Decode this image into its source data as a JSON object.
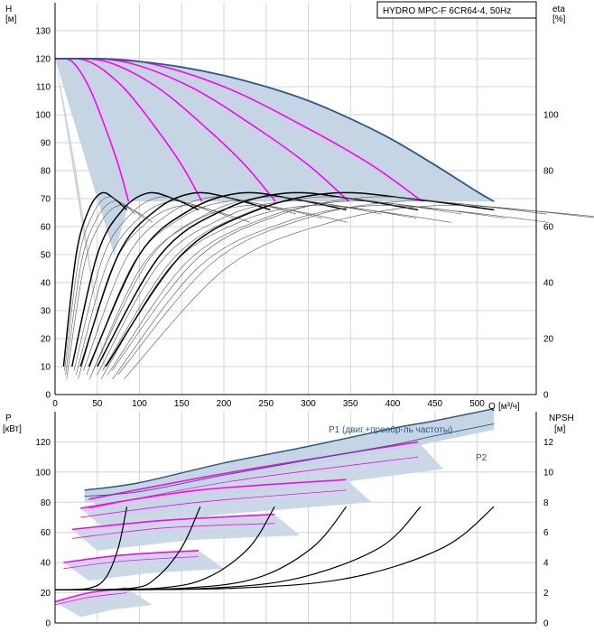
{
  "chart_data": [
    {
      "type": "line",
      "title": "HYDRO MPC-F 6CR64-4, 50Hz",
      "ylabel": "H",
      "yunit": "[м]",
      "y2label": "eta",
      "y2unit": "[%]",
      "xlabel": "Q",
      "xunit": "[м³/ч]",
      "xlim": [
        0,
        570
      ],
      "ylim": [
        0,
        140
      ],
      "y2lim": [
        0,
        140
      ],
      "xticks": [
        0,
        50,
        100,
        150,
        200,
        250,
        300,
        350,
        400,
        450,
        500
      ],
      "yticks": [
        0,
        10,
        20,
        30,
        40,
        50,
        60,
        70,
        80,
        90,
        100,
        110,
        120,
        130
      ],
      "y2ticks": [
        0,
        20,
        40,
        60,
        80,
        100
      ],
      "grid": true,
      "colors": {
        "envelope": "#c5d5e3",
        "max_curve": "#2b5b88",
        "speed_curves": "#ff00ff",
        "eta_curves": "#000000"
      },
      "head_envelope": {
        "upper": [
          [
            0,
            120
          ],
          [
            50,
            120
          ],
          [
            100,
            119
          ],
          [
            150,
            117
          ],
          [
            200,
            114
          ],
          [
            250,
            110
          ],
          [
            300,
            105
          ],
          [
            350,
            98.5
          ],
          [
            400,
            91
          ],
          [
            450,
            82
          ],
          [
            500,
            72.5
          ],
          [
            520,
            69
          ]
        ],
        "lower_left": [
          [
            0,
            120
          ],
          [
            10,
            105
          ],
          [
            25,
            80
          ],
          [
            35,
            60
          ],
          [
            45,
            40
          ],
          [
            52,
            22
          ],
          [
            58,
            10
          ],
          [
            62,
            5
          ]
        ],
        "min_head": 69,
        "min_head_start": 88
      },
      "max_curve": [
        [
          0,
          120
        ],
        [
          50,
          120
        ],
        [
          100,
          119
        ],
        [
          150,
          117
        ],
        [
          200,
          114
        ],
        [
          250,
          110
        ],
        [
          300,
          105
        ],
        [
          350,
          98.5
        ],
        [
          400,
          91
        ],
        [
          450,
          82
        ],
        [
          500,
          72.5
        ],
        [
          520,
          69
        ]
      ],
      "speed_curves": [
        {
          "pumps": 1,
          "points": [
            [
              0,
              120
            ],
            [
              20,
              119
            ],
            [
              40,
              110
            ],
            [
              60,
              95
            ],
            [
              75,
              82
            ],
            [
              87,
              69
            ]
          ]
        },
        {
          "pumps": 2,
          "points": [
            [
              0,
              120
            ],
            [
              40,
              119
            ],
            [
              80,
              110
            ],
            [
              120,
              95
            ],
            [
              150,
              82
            ],
            [
              174,
              69
            ]
          ]
        },
        {
          "pumps": 3,
          "points": [
            [
              0,
              120
            ],
            [
              60,
              119
            ],
            [
              120,
              110
            ],
            [
              180,
              95
            ],
            [
              225,
              82
            ],
            [
              261,
              69
            ]
          ]
        },
        {
          "pumps": 4,
          "points": [
            [
              0,
              120
            ],
            [
              80,
              119
            ],
            [
              160,
              110
            ],
            [
              240,
              95
            ],
            [
              300,
              82
            ],
            [
              348,
              69
            ]
          ]
        },
        {
          "pumps": 5,
          "points": [
            [
              0,
              120
            ],
            [
              100,
              119
            ],
            [
              200,
              110
            ],
            [
              300,
              95
            ],
            [
              375,
              82
            ],
            [
              435,
              69
            ]
          ]
        }
      ],
      "eta_curves": [
        {
          "pumps": 1,
          "points": [
            [
              10,
              10
            ],
            [
              25,
              50
            ],
            [
              40,
              66
            ],
            [
              55,
              72
            ],
            [
              70,
              70
            ],
            [
              85,
              66
            ]
          ]
        },
        {
          "pumps": 2,
          "points": [
            [
              20,
              10
            ],
            [
              50,
              50
            ],
            [
              80,
              66
            ],
            [
              110,
              72
            ],
            [
              140,
              70
            ],
            [
              170,
              66
            ]
          ]
        },
        {
          "pumps": 3,
          "points": [
            [
              30,
              10
            ],
            [
              75,
              50
            ],
            [
              120,
              66
            ],
            [
              165,
              72
            ],
            [
              210,
              70
            ],
            [
              255,
              66
            ]
          ]
        },
        {
          "pumps": 4,
          "points": [
            [
              40,
              10
            ],
            [
              100,
              50
            ],
            [
              160,
              66
            ],
            [
              220,
              72
            ],
            [
              280,
              70
            ],
            [
              345,
              66
            ]
          ]
        },
        {
          "pumps": 5,
          "points": [
            [
              50,
              10
            ],
            [
              125,
              50
            ],
            [
              200,
              66
            ],
            [
              275,
              72
            ],
            [
              350,
              70
            ],
            [
              430,
              66
            ]
          ]
        },
        {
          "pumps": 6,
          "points": [
            [
              60,
              10
            ],
            [
              150,
              50
            ],
            [
              240,
              66
            ],
            [
              330,
              72
            ],
            [
              420,
              70
            ],
            [
              520,
              66
            ]
          ]
        }
      ]
    },
    {
      "type": "line",
      "ylabel": "P",
      "yunit": "[кВт]",
      "y2label": "NPSH",
      "y2unit": "[м]",
      "xlim": [
        0,
        570
      ],
      "ylim": [
        0,
        140
      ],
      "y2lim": [
        0,
        14
      ],
      "yticks": [
        0,
        20,
        40,
        60,
        80,
        100,
        120
      ],
      "y2ticks": [
        0,
        2,
        4,
        6,
        8,
        10,
        12
      ],
      "grid": true,
      "legend": [
        "P1 (двиг.+преобр-ль частоты)",
        "P2"
      ],
      "p1_max": [
        [
          35,
          88
        ],
        [
          100,
          93
        ],
        [
          200,
          106
        ],
        [
          300,
          117
        ],
        [
          400,
          129
        ],
        [
          450,
          134
        ],
        [
          520,
          142
        ]
      ],
      "p2_max": [
        [
          35,
          84
        ],
        [
          100,
          87
        ],
        [
          200,
          98
        ],
        [
          300,
          108
        ],
        [
          400,
          118
        ],
        [
          450,
          124
        ],
        [
          520,
          132
        ]
      ],
      "power_bands": [
        {
          "pumps": 1,
          "p1": [
            [
              0,
              14
            ],
            [
              40,
              20
            ],
            [
              85,
              23
            ]
          ],
          "p2": [
            [
              0,
              12
            ],
            [
              40,
              17
            ],
            [
              85,
              20
            ]
          ]
        },
        {
          "pumps": 2,
          "p1": [
            [
              10,
              40
            ],
            [
              80,
              45
            ],
            [
              170,
              48
            ]
          ],
          "p2": [
            [
              10,
              36
            ],
            [
              80,
              41
            ],
            [
              170,
              44
            ]
          ]
        },
        {
          "pumps": 3,
          "p1": [
            [
              20,
              62
            ],
            [
              130,
              68
            ],
            [
              260,
              72
            ]
          ],
          "p2": [
            [
              20,
              56
            ],
            [
              130,
              63
            ],
            [
              260,
              66
            ]
          ]
        },
        {
          "pumps": 4,
          "p1": [
            [
              30,
              76
            ],
            [
              170,
              88
            ],
            [
              345,
              95
            ]
          ],
          "p2": [
            [
              30,
              70
            ],
            [
              170,
              80
            ],
            [
              345,
              88
            ]
          ]
        },
        {
          "pumps": 5,
          "p1": [
            [
              40,
              82
            ],
            [
              210,
              100
            ],
            [
              430,
              120
            ]
          ],
          "p2": [
            [
              40,
              76
            ],
            [
              210,
              94
            ],
            [
              430,
              110
            ]
          ]
        }
      ],
      "npsh_curves": [
        {
          "pumps": 1,
          "points": [
            [
              0,
              2.2
            ],
            [
              40,
              2.3
            ],
            [
              60,
              3
            ],
            [
              75,
              5
            ],
            [
              85,
              7.7
            ]
          ]
        },
        {
          "pumps": 2,
          "points": [
            [
              0,
              2.2
            ],
            [
              90,
              2.3
            ],
            [
              120,
              3
            ],
            [
              150,
              5
            ],
            [
              172,
              7.7
            ]
          ]
        },
        {
          "pumps": 3,
          "points": [
            [
              0,
              2.2
            ],
            [
              120,
              2.3
            ],
            [
              180,
              3
            ],
            [
              230,
              5
            ],
            [
              260,
              7.7
            ]
          ]
        },
        {
          "pumps": 4,
          "points": [
            [
              0,
              2.2
            ],
            [
              150,
              2.3
            ],
            [
              240,
              3
            ],
            [
              305,
              5
            ],
            [
              345,
              7.7
            ]
          ]
        },
        {
          "pumps": 5,
          "points": [
            [
              0,
              2.2
            ],
            [
              180,
              2.3
            ],
            [
              290,
              3
            ],
            [
              385,
              5
            ],
            [
              433,
              7.7
            ]
          ]
        },
        {
          "pumps": 6,
          "points": [
            [
              0,
              2.2
            ],
            [
              210,
              2.3
            ],
            [
              350,
              3
            ],
            [
              460,
              5
            ],
            [
              520,
              7.7
            ]
          ]
        }
      ]
    }
  ]
}
